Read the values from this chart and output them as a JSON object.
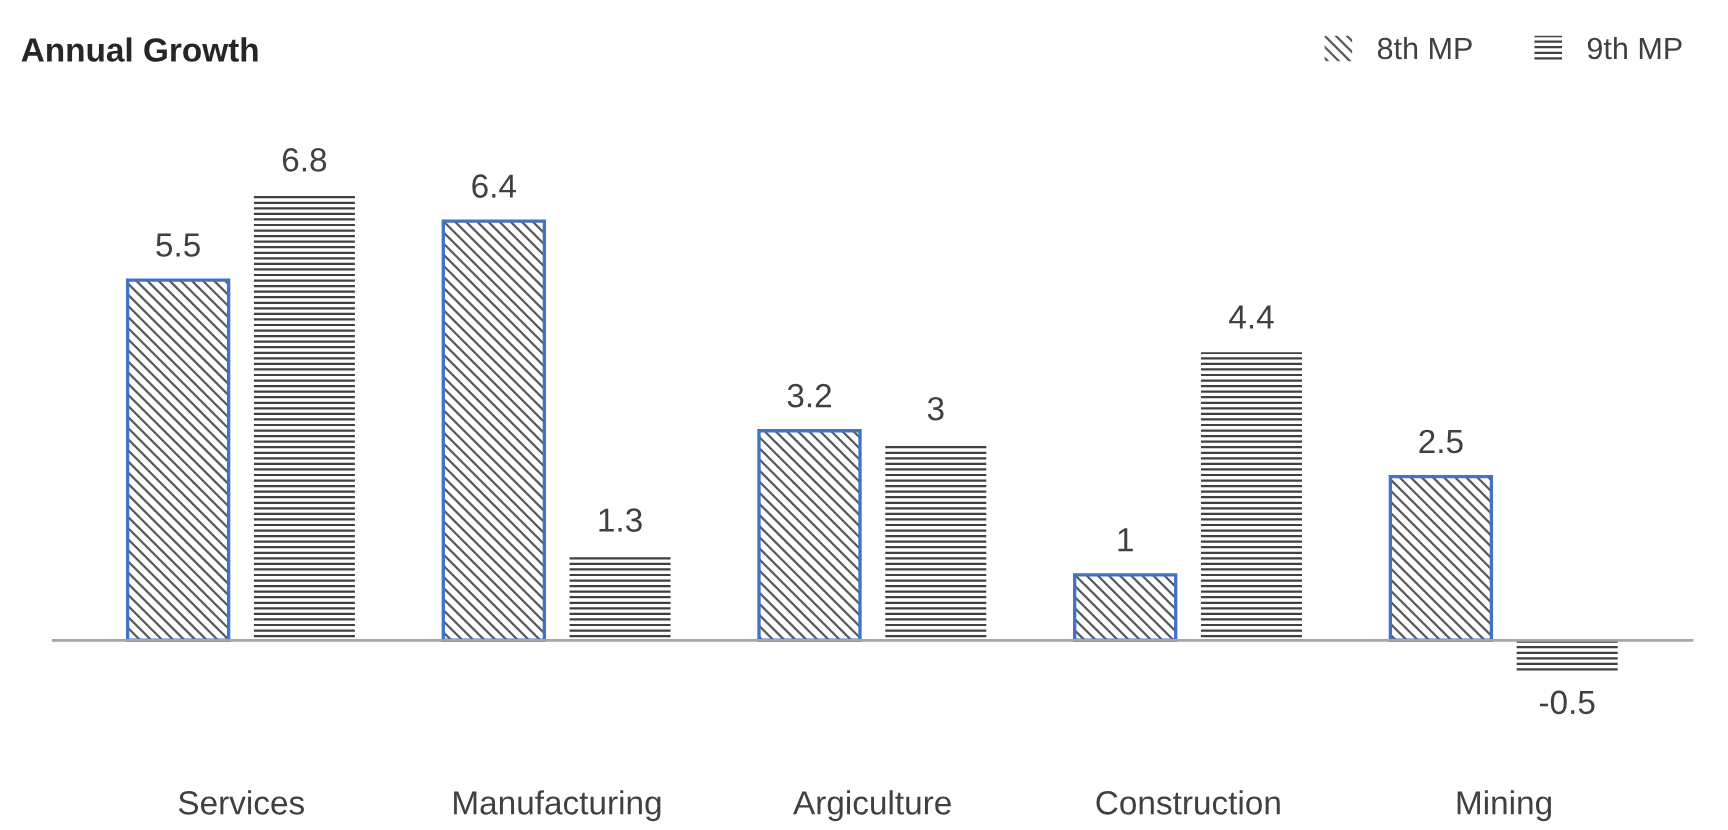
{
  "chart_data": {
    "type": "bar",
    "title": "Annual Growth",
    "categories": [
      "Services",
      "Manufacturing",
      "Argiculture",
      "Construction",
      "Mining"
    ],
    "series": [
      {
        "name": "8th MP",
        "color": "#595959",
        "values": [
          5.5,
          6.4,
          3.2,
          1,
          2.5
        ]
      },
      {
        "name": "9th MP",
        "color": "#404040",
        "values": [
          6.8,
          1.3,
          3,
          4.4,
          -0.5
        ]
      }
    ],
    "data_labels": true,
    "legend": "top right"
  }
}
